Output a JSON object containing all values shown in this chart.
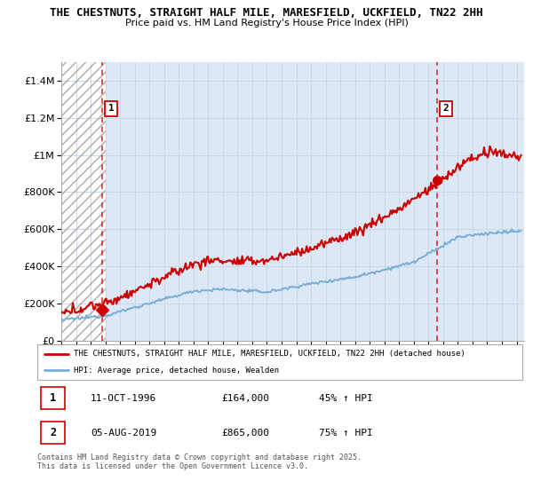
{
  "title_line1": "THE CHESTNUTS, STRAIGHT HALF MILE, MARESFIELD, UCKFIELD, TN22 2HH",
  "title_line2": "Price paid vs. HM Land Registry's House Price Index (HPI)",
  "ylabel_ticks": [
    "£0",
    "£200K",
    "£400K",
    "£600K",
    "£800K",
    "£1M",
    "£1.2M",
    "£1.4M"
  ],
  "ytick_values": [
    0,
    200000,
    400000,
    600000,
    800000,
    1000000,
    1200000,
    1400000
  ],
  "ylim": [
    0,
    1500000
  ],
  "xlim_start": 1994.0,
  "xlim_end": 2025.5,
  "sale1_x": 1996.78,
  "sale1_y": 164000,
  "sale2_x": 2019.59,
  "sale2_y": 865000,
  "sale1_label": "1",
  "sale2_label": "2",
  "red_color": "#cc0000",
  "blue_color": "#7aaed6",
  "grid_color": "#c8d8e8",
  "legend_line1": "THE CHESTNUTS, STRAIGHT HALF MILE, MARESFIELD, UCKFIELD, TN22 2HH (detached house)",
  "legend_line2": "HPI: Average price, detached house, Wealden",
  "table_row1_num": "1",
  "table_row1_date": "11-OCT-1996",
  "table_row1_price": "£164,000",
  "table_row1_hpi": "45% ↑ HPI",
  "table_row2_num": "2",
  "table_row2_date": "05-AUG-2019",
  "table_row2_price": "£865,000",
  "table_row2_hpi": "75% ↑ HPI",
  "footer": "Contains HM Land Registry data © Crown copyright and database right 2025.\nThis data is licensed under the Open Government Licence v3.0.",
  "bg_color": "#ffffff",
  "plot_bg_color": "#dce8f5"
}
